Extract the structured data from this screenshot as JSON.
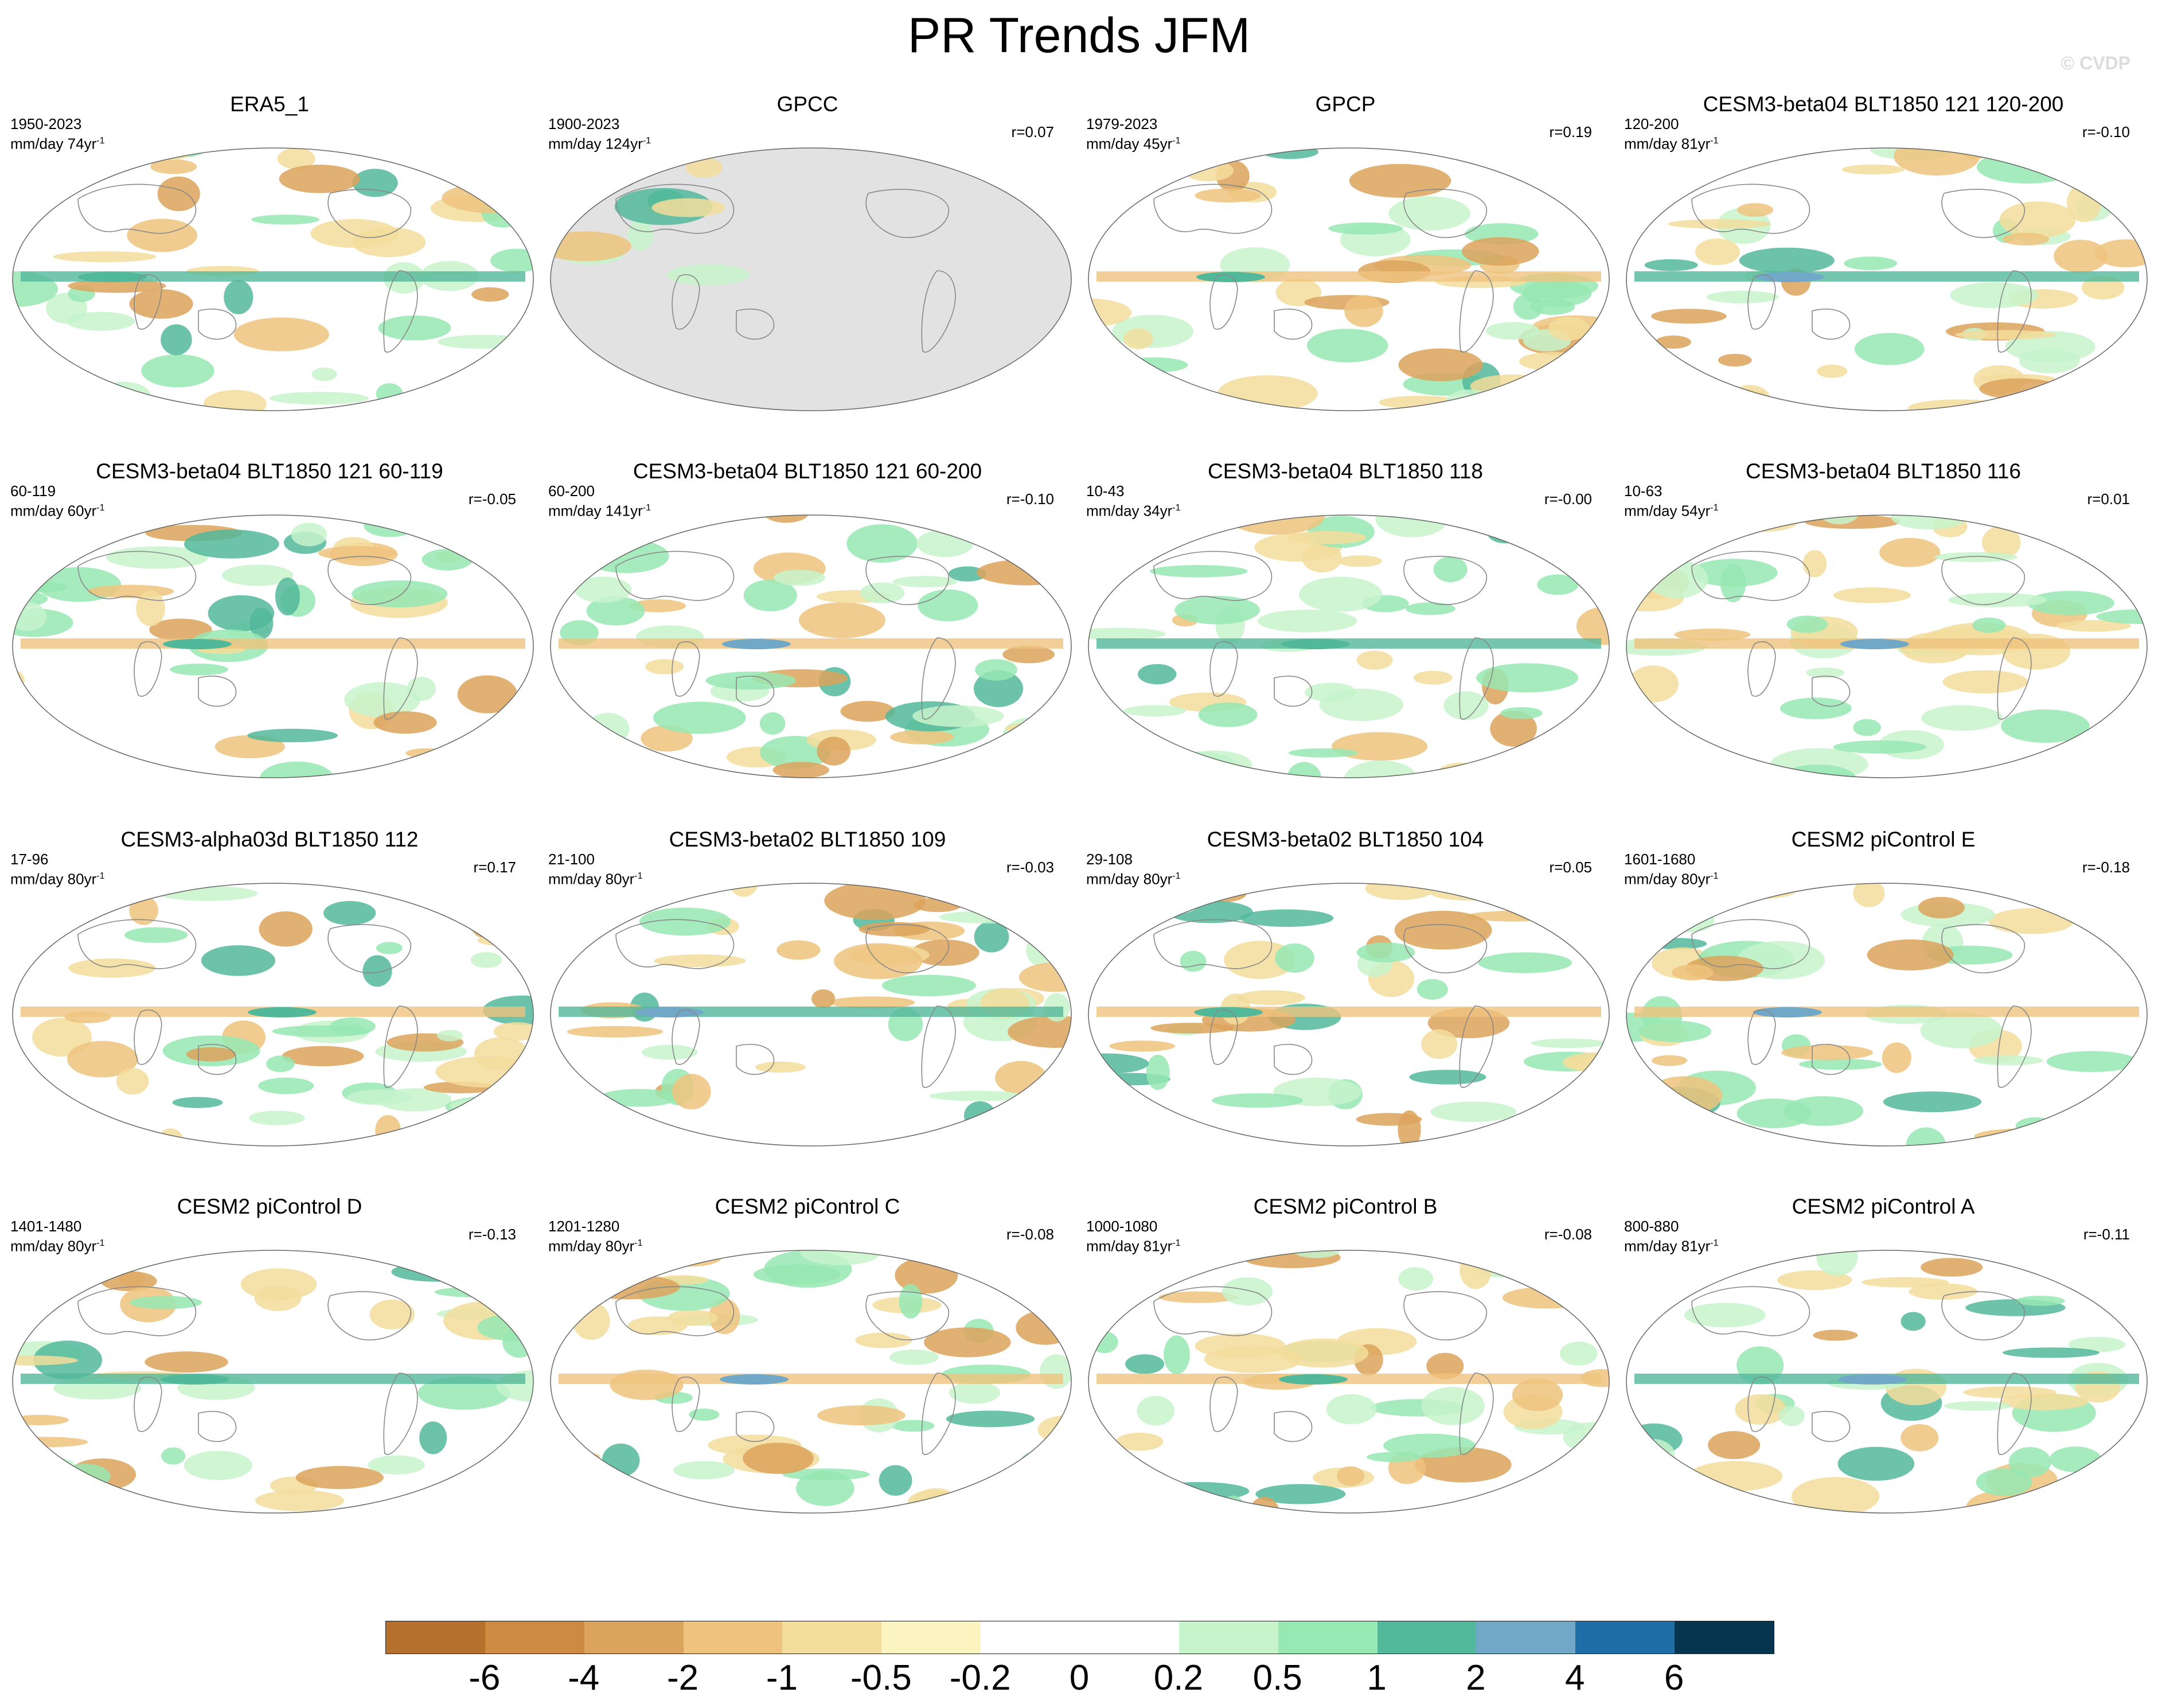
{
  "title": "PR Trends JFM",
  "watermark": "© CVDP",
  "panels": [
    {
      "title": "ERA5_1",
      "period": "1950-2023",
      "units": "mm/day 74yr",
      "r": ""
    },
    {
      "title": "GPCC",
      "period": "1900-2023",
      "units": "mm/day 124yr",
      "r": "r=0.07"
    },
    {
      "title": "GPCP",
      "period": "1979-2023",
      "units": "mm/day 45yr",
      "r": "r=0.19"
    },
    {
      "title": "CESM3-beta04 BLT1850 121 120-200",
      "period": "120-200",
      "units": "mm/day 81yr",
      "r": "r=-0.10"
    },
    {
      "title": "CESM3-beta04 BLT1850 121 60-119",
      "period": "60-119",
      "units": "mm/day 60yr",
      "r": "r=-0.05"
    },
    {
      "title": "CESM3-beta04 BLT1850 121 60-200",
      "period": "60-200",
      "units": "mm/day 141yr",
      "r": "r=-0.10"
    },
    {
      "title": "CESM3-beta04 BLT1850 118",
      "period": "10-43",
      "units": "mm/day 34yr",
      "r": "r=-0.00"
    },
    {
      "title": "CESM3-beta04 BLT1850 116",
      "period": "10-63",
      "units": "mm/day 54yr",
      "r": "r=0.01"
    },
    {
      "title": "CESM3-alpha03d BLT1850 112",
      "period": "17-96",
      "units": "mm/day 80yr",
      "r": "r=0.17"
    },
    {
      "title": "CESM3-beta02 BLT1850 109",
      "period": "21-100",
      "units": "mm/day 80yr",
      "r": "r=-0.03"
    },
    {
      "title": "CESM3-beta02 BLT1850 104",
      "period": "29-108",
      "units": "mm/day 80yr",
      "r": "r=0.05"
    },
    {
      "title": "CESM2 piControl E",
      "period": "1601-1680",
      "units": "mm/day 80yr",
      "r": "r=-0.18"
    },
    {
      "title": "CESM2 piControl D",
      "period": "1401-1480",
      "units": "mm/day 80yr",
      "r": "r=-0.13"
    },
    {
      "title": "CESM2 piControl C",
      "period": "1201-1280",
      "units": "mm/day 80yr",
      "r": "r=-0.08"
    },
    {
      "title": "CESM2 piControl B",
      "period": "1000-1080",
      "units": "mm/day 81yr",
      "r": "r=-0.08"
    },
    {
      "title": "CESM2 piControl A",
      "period": "800-880",
      "units": "mm/day 81yr",
      "r": "r=-0.11"
    }
  ],
  "units_superscript": "-1",
  "colorbar": {
    "colors": [
      "#b5702e",
      "#cd8a41",
      "#dca35c",
      "#efc37e",
      "#f3dd9c",
      "#fbf3c0",
      "#ffffff",
      "#ffffff",
      "#c7f3cb",
      "#97e8b3",
      "#52b89a",
      "#71a8c8",
      "#1f6ea8",
      "#05354f"
    ],
    "labels": [
      "-6",
      "-4",
      "-2",
      "-1",
      "-0.5",
      "-0.2",
      "0",
      "0.2",
      "0.5",
      "1",
      "2",
      "4",
      "6"
    ]
  },
  "gpcc_land_mask_color": "#e2e2e2"
}
